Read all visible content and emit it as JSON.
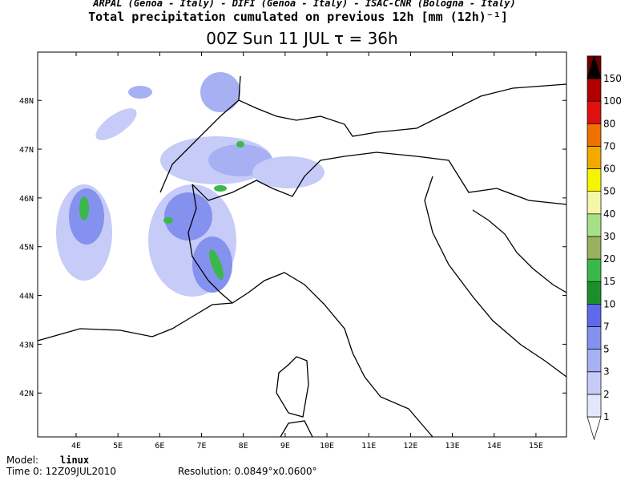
{
  "header": {
    "credits": "ARPAL (Genoa - Italy)  -  DIFI (Genoa - Italy)  -  ISAC-CNR (Bologna - Italy)",
    "title": "Total precipitation cumulated on previous 12h [mm (12h)⁻¹]",
    "subtitle": "00Z Sun 11 JUL  τ = 36h"
  },
  "map": {
    "lonlim": [
      3.08,
      15.73
    ],
    "latlim": [
      41.1,
      48.99
    ],
    "lon_ticks": [
      {
        "value": 4,
        "label": "4E"
      },
      {
        "value": 5,
        "label": "5E"
      },
      {
        "value": 6,
        "label": "6E"
      },
      {
        "value": 7,
        "label": "7E"
      },
      {
        "value": 8,
        "label": "8E"
      },
      {
        "value": 9,
        "label": "9E"
      },
      {
        "value": 10,
        "label": "10E"
      },
      {
        "value": 11,
        "label": "11E"
      },
      {
        "value": 12,
        "label": "12E"
      },
      {
        "value": 13,
        "label": "13E"
      },
      {
        "value": 14,
        "label": "14E"
      },
      {
        "value": 15,
        "label": "15E"
      }
    ],
    "lat_ticks": [
      {
        "value": 42,
        "label": "42N"
      },
      {
        "value": 43,
        "label": "43N"
      },
      {
        "value": 44,
        "label": "44N"
      },
      {
        "value": 45,
        "label": "45N"
      },
      {
        "value": 46,
        "label": "46N"
      },
      {
        "value": 47,
        "label": "47N"
      },
      {
        "value": 48,
        "label": "48N"
      }
    ]
  },
  "colorbar": {
    "levels": [
      1,
      2,
      3,
      5,
      7,
      10,
      15,
      20,
      30,
      40,
      50,
      60,
      70,
      80,
      100,
      150
    ],
    "colors": [
      "#ffffff",
      "#e4e6fb",
      "#c6cbf7",
      "#a6b0f2",
      "#8591ee",
      "#5d6bea",
      "#1c8f2c",
      "#3bb84a",
      "#98b060",
      "#a8e088",
      "#f4f7a6",
      "#f5f500",
      "#f2a900",
      "#f07000",
      "#e01010",
      "#b00000",
      "#700000",
      "#000000"
    ]
  },
  "footer": {
    "model_label": "Model:",
    "model": "linux",
    "time": "Time 0: 12Z09JUL2010",
    "resolution": "Resolution: 0.0849°x0.0600°"
  }
}
